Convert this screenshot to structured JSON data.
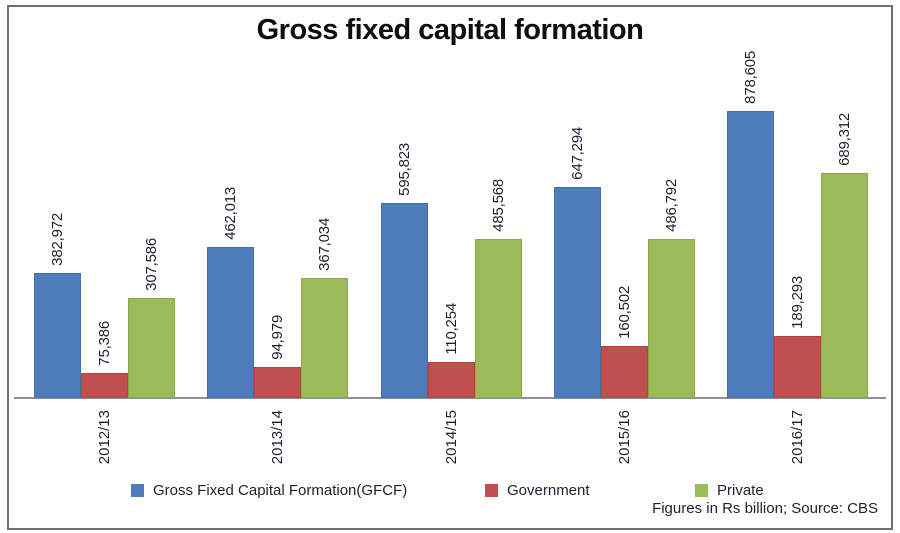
{
  "chart": {
    "title": "Gross fixed capital formation",
    "footnote": "Figures in Rs billion; Source: CBS"
  },
  "chart_data": {
    "type": "bar",
    "title": "Gross fixed capital formation",
    "categories": [
      "2012/13",
      "2013/14",
      "2014/15",
      "2015/16",
      "2016/17"
    ],
    "series": [
      {
        "name": "Gross Fixed Capital Formation(GFCF)",
        "color": "#4d7cbb",
        "values": [
          382972,
          462013,
          595823,
          647294,
          878605
        ]
      },
      {
        "name": "Government",
        "color": "#c0504d",
        "values": [
          75386,
          94979,
          110254,
          160502,
          189293
        ]
      },
      {
        "name": "Private",
        "color": "#9bbb59",
        "values": [
          307586,
          367034,
          485568,
          486792,
          689312
        ]
      }
    ],
    "value_label_format": "thousands-comma",
    "ylim": [
      0,
      900000
    ],
    "grid": false,
    "y_axis_visible": false,
    "legend_position": "bottom",
    "unit": "Rs billion",
    "source": "CBS",
    "footnote": "Figures in Rs billion; Source: CBS"
  }
}
